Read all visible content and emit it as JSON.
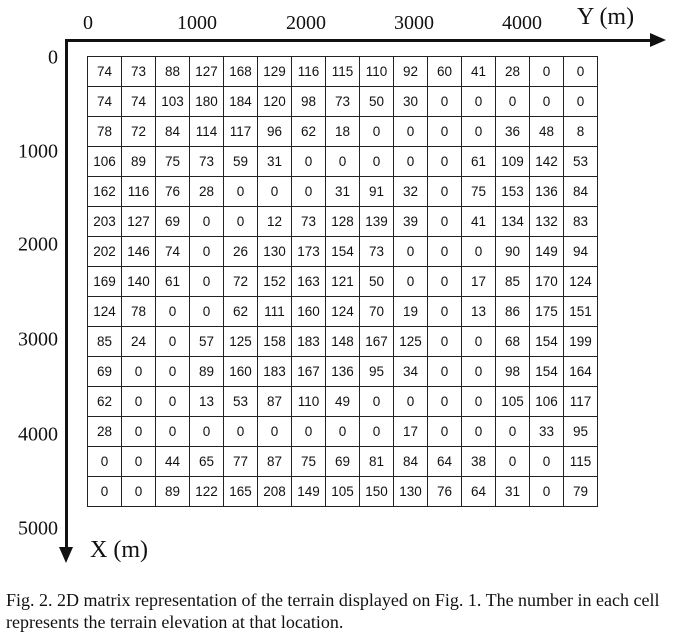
{
  "axes": {
    "y_title": "Y (m)",
    "x_title": "X (m)",
    "y_ticks": [
      "0",
      "1000",
      "2000",
      "3000",
      "4000"
    ],
    "x_ticks": [
      "0",
      "1000",
      "2000",
      "3000",
      "4000",
      "5000"
    ]
  },
  "matrix": {
    "rows": [
      [
        "74",
        "73",
        "88",
        "127",
        "168",
        "129",
        "116",
        "115",
        "110",
        "92",
        "60",
        "41",
        "28",
        "0",
        "0"
      ],
      [
        "74",
        "74",
        "103",
        "180",
        "184",
        "120",
        "98",
        "73",
        "50",
        "30",
        "0",
        "0",
        "0",
        "0",
        "0"
      ],
      [
        "78",
        "72",
        "84",
        "114",
        "117",
        "96",
        "62",
        "18",
        "0",
        "0",
        "0",
        "0",
        "36",
        "48",
        "8"
      ],
      [
        "106",
        "89",
        "75",
        "73",
        "59",
        "31",
        "0",
        "0",
        "0",
        "0",
        "0",
        "61",
        "109",
        "142",
        "53"
      ],
      [
        "162",
        "116",
        "76",
        "28",
        "0",
        "0",
        "0",
        "31",
        "91",
        "32",
        "0",
        "75",
        "153",
        "136",
        "84"
      ],
      [
        "203",
        "127",
        "69",
        "0",
        "0",
        "12",
        "73",
        "128",
        "139",
        "39",
        "0",
        "41",
        "134",
        "132",
        "83"
      ],
      [
        "202",
        "146",
        "74",
        "0",
        "26",
        "130",
        "173",
        "154",
        "73",
        "0",
        "0",
        "0",
        "90",
        "149",
        "94"
      ],
      [
        "169",
        "140",
        "61",
        "0",
        "72",
        "152",
        "163",
        "121",
        "50",
        "0",
        "0",
        "17",
        "85",
        "170",
        "124"
      ],
      [
        "124",
        "78",
        "0",
        "0",
        "62",
        "111",
        "160",
        "124",
        "70",
        "19",
        "0",
        "13",
        "86",
        "175",
        "151"
      ],
      [
        "85",
        "24",
        "0",
        "57",
        "125",
        "158",
        "183",
        "148",
        "167",
        "125",
        "0",
        "0",
        "68",
        "154",
        "199"
      ],
      [
        "69",
        "0",
        "0",
        "89",
        "160",
        "183",
        "167",
        "136",
        "95",
        "34",
        "0",
        "0",
        "98",
        "154",
        "164"
      ],
      [
        "62",
        "0",
        "0",
        "13",
        "53",
        "87",
        "110",
        "49",
        "0",
        "0",
        "0",
        "0",
        "105",
        "106",
        "117"
      ],
      [
        "28",
        "0",
        "0",
        "0",
        "0",
        "0",
        "0",
        "0",
        "0",
        "17",
        "0",
        "0",
        "0",
        "33",
        "95"
      ],
      [
        "0",
        "0",
        "44",
        "65",
        "77",
        "87",
        "75",
        "69",
        "81",
        "84",
        "64",
        "38",
        "0",
        "0",
        "115"
      ],
      [
        "0",
        "0",
        "89",
        "122",
        "165",
        "208",
        "149",
        "105",
        "150",
        "130",
        "76",
        "64",
        "31",
        "0",
        "79"
      ]
    ]
  },
  "caption": "Fig. 2.   2D matrix representation of the terrain displayed on Fig. 1. The number in each cell represents the terrain elevation at that location."
}
